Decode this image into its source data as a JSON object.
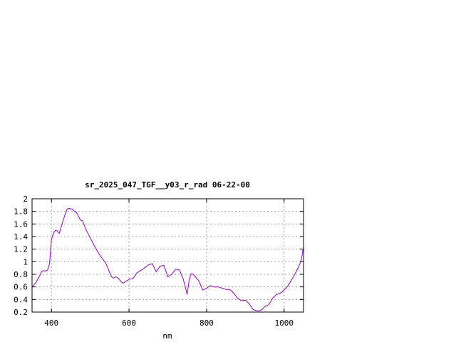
{
  "chart_data": {
    "type": "line",
    "title": "sr_2025_047_TGF__y03_r_rad 06-22-00",
    "xlabel": "nm",
    "ylabel": "",
    "xlim": [
      350,
      1050
    ],
    "ylim": [
      0.2,
      2.0
    ],
    "xticks": [
      400,
      600,
      800,
      1000
    ],
    "yticks": [
      0.2,
      0.4,
      0.6,
      0.8,
      1,
      1.2,
      1.4,
      1.6,
      1.8,
      2
    ],
    "grid": true,
    "line_color": "#9400d3",
    "series": [
      {
        "name": "",
        "x": [
          350,
          360,
          370,
          375,
          380,
          385,
          390,
          395,
          400,
          405,
          410,
          415,
          420,
          425,
          430,
          435,
          440,
          445,
          450,
          455,
          460,
          465,
          470,
          475,
          480,
          490,
          500,
          510,
          520,
          530,
          540,
          550,
          555,
          560,
          565,
          570,
          575,
          580,
          585,
          590,
          595,
          600,
          605,
          610,
          620,
          630,
          640,
          650,
          660,
          670,
          680,
          690,
          700,
          710,
          720,
          730,
          740,
          750,
          755,
          760,
          765,
          770,
          775,
          780,
          790,
          800,
          810,
          820,
          830,
          840,
          850,
          860,
          870,
          880,
          890,
          900,
          910,
          920,
          930,
          935,
          940,
          945,
          950,
          955,
          960,
          965,
          970,
          980,
          990,
          1000,
          1010,
          1020,
          1030,
          1040,
          1045,
          1050
        ],
        "y": [
          0.6,
          0.67,
          0.78,
          0.85,
          0.86,
          0.85,
          0.87,
          0.97,
          1.35,
          1.45,
          1.5,
          1.49,
          1.45,
          1.55,
          1.65,
          1.75,
          1.83,
          1.85,
          1.84,
          1.83,
          1.8,
          1.78,
          1.72,
          1.66,
          1.65,
          1.5,
          1.38,
          1.26,
          1.15,
          1.06,
          0.98,
          0.83,
          0.76,
          0.74,
          0.76,
          0.75,
          0.72,
          0.68,
          0.66,
          0.68,
          0.7,
          0.72,
          0.73,
          0.73,
          0.82,
          0.86,
          0.9,
          0.95,
          0.97,
          0.84,
          0.93,
          0.94,
          0.76,
          0.8,
          0.88,
          0.87,
          0.72,
          0.48,
          0.7,
          0.81,
          0.8,
          0.77,
          0.73,
          0.7,
          0.55,
          0.58,
          0.62,
          0.6,
          0.6,
          0.58,
          0.56,
          0.56,
          0.5,
          0.42,
          0.38,
          0.39,
          0.33,
          0.24,
          0.22,
          0.22,
          0.23,
          0.25,
          0.29,
          0.3,
          0.32,
          0.36,
          0.42,
          0.48,
          0.5,
          0.55,
          0.62,
          0.72,
          0.83,
          0.96,
          1.05,
          1.25
        ]
      }
    ]
  }
}
